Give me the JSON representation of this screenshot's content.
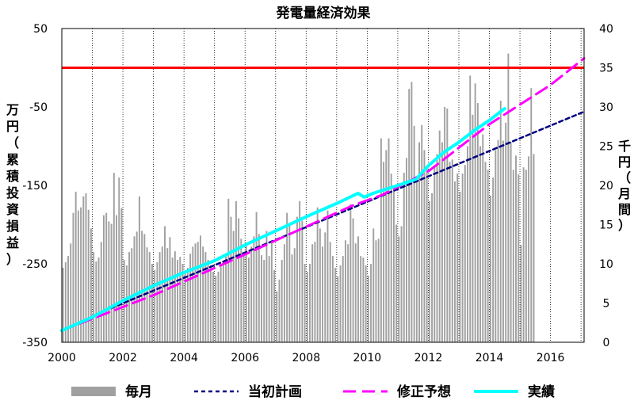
{
  "chart_data": {
    "type": "bar+line",
    "title": "発電量経済効果",
    "ylabel_left": "万円（累積投資損益）",
    "ylabel_right": "千円（月間）",
    "xlim": [
      2000,
      2017.1
    ],
    "x_ticks": [
      2000,
      2002,
      2004,
      2006,
      2008,
      2010,
      2012,
      2014,
      2016
    ],
    "ylim_left": [
      -350,
      50
    ],
    "yticks_left": [
      50,
      -50,
      -150,
      -250,
      -350
    ],
    "ylim_right": [
      0,
      40
    ],
    "yticks_right": [
      40,
      35,
      30,
      25,
      20,
      15,
      10,
      5,
      0
    ],
    "grid": "vertical-dotted",
    "legend_position": "bottom",
    "reference_line": {
      "name": "",
      "y": 0,
      "axis": "left",
      "color": "#ff0000"
    },
    "monthly_bars": {
      "name": "毎月",
      "axis": "right",
      "color": "#a0a0a0",
      "start": 2000.0,
      "step": 0.0833,
      "values": [
        9.5,
        10.2,
        11.0,
        12.6,
        16.5,
        19.2,
        16.8,
        17.2,
        18.6,
        19.0,
        16.9,
        14.5,
        11.5,
        10.3,
        10.8,
        12.8,
        16.2,
        16.5,
        15.4,
        15.1,
        21.6,
        16.2,
        21.0,
        17.1,
        10.5,
        9.8,
        11.5,
        12.0,
        13.5,
        14.1,
        18.6,
        14.2,
        13.8,
        12.1,
        11.5,
        10.0,
        9.2,
        10.2,
        11.5,
        12.2,
        14.8,
        12.0,
        13.4,
        10.8,
        11.6,
        10.5,
        10.9,
        10.0,
        8.8,
        9.5,
        11.3,
        12.2,
        12.6,
        12.8,
        13.6,
        12.2,
        11.5,
        10.5,
        9.8,
        9.0,
        8.5,
        9.0,
        10.0,
        10.2,
        11.2,
        18.3,
        16.0,
        14.2,
        18.0,
        15.8,
        13.2,
        11.0,
        12.5,
        10.8,
        12.2,
        13.5,
        16.6,
        13.8,
        11.1,
        10.5,
        14.2,
        11.0,
        13.0,
        9.2,
        6.5,
        8.0,
        10.5,
        12.5,
        16.5,
        15.0,
        11.2,
        12.0,
        16.0,
        18.0,
        15.5,
        10.0,
        9.0,
        10.0,
        12.5,
        12.8,
        17.2,
        14.5,
        12.2,
        14.0,
        16.8,
        12.8,
        11.0,
        9.5,
        8.4,
        9.8,
        11.0,
        13.0,
        12.5,
        17.6,
        15.8,
        12.6,
        13.5,
        11.0,
        10.8,
        9.8,
        8.5,
        10.0,
        14.5,
        13.0,
        13.2,
        26.0,
        23.0,
        24.5,
        26.0,
        21.5,
        19.8,
        15.0,
        13.5,
        14.8,
        21.6,
        23.5,
        32.3,
        33.2,
        27.6,
        20.6,
        25.5,
        27.7,
        24.5,
        22.5,
        18.0,
        19.0,
        22.5,
        24.0,
        27.0,
        25.5,
        30.0,
        29.8,
        23.0,
        23.3,
        20.5,
        21.5,
        19.2,
        21.5,
        22.6,
        25.0,
        34.0,
        29.0,
        33.0,
        30.5,
        25.0,
        26.5,
        23.0,
        22.0,
        18.7,
        21.0,
        24.5,
        25.8,
        30.8,
        25.7,
        28.0,
        36.8,
        25.5,
        22.0,
        23.8,
        21.4,
        12.4,
        22.3,
        22.0,
        23.7,
        32.4,
        24.0
      ]
    },
    "series": [
      {
        "name": "当初計画",
        "axis": "left",
        "color": "#000080",
        "dash": "short",
        "x": [
          2001.4,
          2017.1
        ],
        "y": [
          -310,
          -56
        ]
      },
      {
        "name": "修正予想",
        "axis": "left",
        "color": "#ff00ff",
        "dash": "long",
        "x": [
          2000.0,
          2003.0,
          2006.0,
          2009.5,
          2010.5,
          2012.0,
          2014.0,
          2016.0,
          2017.1
        ],
        "y": [
          -335,
          -290,
          -238,
          -176,
          -162,
          -132,
          -72,
          -22,
          12
        ]
      },
      {
        "name": "実績",
        "axis": "left",
        "color": "#00ffff",
        "dash": "solid",
        "x": [
          2000.0,
          2001.0,
          2002.0,
          2003.0,
          2004.0,
          2005.0,
          2006.0,
          2007.0,
          2008.0,
          2009.0,
          2009.7,
          2009.9,
          2010.2,
          2010.6,
          2011.0,
          2011.6,
          2012.0,
          2012.5,
          2013.0,
          2013.5,
          2014.0,
          2014.5
        ],
        "y": [
          -335,
          -318,
          -297,
          -278,
          -261,
          -246,
          -226,
          -208,
          -190,
          -173,
          -160,
          -165,
          -160,
          -155,
          -150,
          -142,
          -125,
          -108,
          -95,
          -80,
          -67,
          -52
        ]
      }
    ],
    "legend": [
      "毎月",
      "当初計画",
      "修正予想",
      "実績"
    ]
  }
}
